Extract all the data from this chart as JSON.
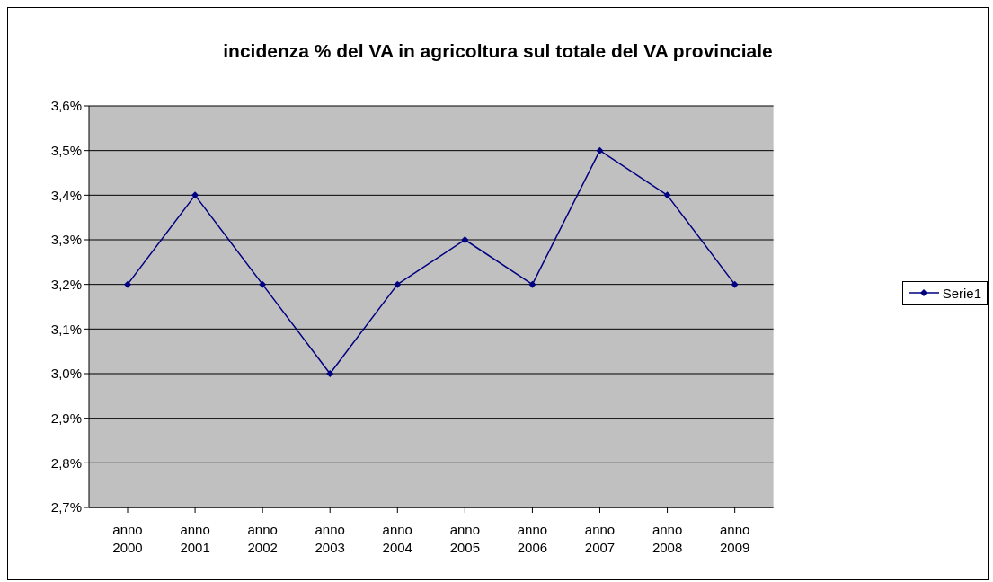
{
  "chart_data": {
    "type": "line",
    "title": "incidenza % del VA in agricoltura sul totale del VA provinciale",
    "categories": [
      "anno 2000",
      "anno 2001",
      "anno 2002",
      "anno 2003",
      "anno 2004",
      "anno 2005",
      "anno 2006",
      "anno 2007",
      "anno 2008",
      "anno 2009"
    ],
    "series": [
      {
        "name": "Serie1",
        "color": "#000080",
        "values": [
          3.2,
          3.4,
          3.2,
          3.0,
          3.2,
          3.3,
          3.2,
          3.5,
          3.4,
          3.2
        ]
      }
    ],
    "ylim": [
      2.7,
      3.6
    ],
    "yticks": [
      {
        "value": 2.7,
        "label": "2,7%"
      },
      {
        "value": 2.8,
        "label": "2,8%"
      },
      {
        "value": 2.9,
        "label": "2,9%"
      },
      {
        "value": 3.0,
        "label": "3,0%"
      },
      {
        "value": 3.1,
        "label": "3,1%"
      },
      {
        "value": 3.2,
        "label": "3,2%"
      },
      {
        "value": 3.3,
        "label": "3,3%"
      },
      {
        "value": 3.4,
        "label": "3,4%"
      },
      {
        "value": 3.5,
        "label": "3,5%"
      },
      {
        "value": 3.6,
        "label": "3,6%"
      }
    ],
    "grid": "y",
    "legend": "right",
    "marker": "diamond",
    "line_style": "solid"
  }
}
